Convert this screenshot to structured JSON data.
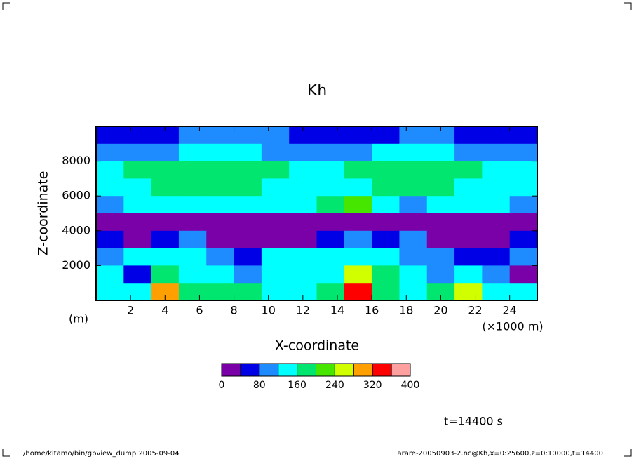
{
  "chart_data": {
    "type": "heatmap",
    "title": "Kh",
    "xlabel": "X-coordinate",
    "ylabel": "Z-coordinate",
    "xunit": "(×1000 m)",
    "yunit": "(m)",
    "annotation": "t=14400 s",
    "footer_left": "/home/kitamo/bin/gpview_dump  2005-09-04",
    "footer_right": "arare-20050903-2.nc@Kh,x=0:25600,z=0:10000,t=14400",
    "xlim": [
      0,
      25.6
    ],
    "ylim": [
      0,
      10000
    ],
    "xticks": [
      2,
      4,
      6,
      8,
      10,
      12,
      14,
      16,
      18,
      20,
      22,
      24
    ],
    "yticks": [
      2000,
      4000,
      6000,
      8000
    ],
    "x": [
      0.8,
      2.4,
      4.0,
      5.6,
      7.2,
      8.8,
      10.4,
      12.0,
      13.6,
      15.2,
      16.8,
      18.4,
      20.0,
      21.6,
      23.2,
      24.8
    ],
    "y": [
      9500,
      8500,
      7500,
      6500,
      5500,
      4500,
      3500,
      2500,
      1500,
      500
    ],
    "values": [
      [
        60,
        60,
        70,
        90,
        90,
        80,
        80,
        70,
        70,
        70,
        70,
        80,
        80,
        70,
        60,
        60
      ],
      [
        110,
        100,
        110,
        130,
        130,
        120,
        110,
        110,
        100,
        110,
        120,
        130,
        120,
        110,
        100,
        110
      ],
      [
        150,
        160,
        170,
        180,
        190,
        180,
        170,
        150,
        150,
        160,
        170,
        180,
        170,
        160,
        150,
        150
      ],
      [
        130,
        140,
        170,
        180,
        170,
        160,
        150,
        140,
        140,
        150,
        160,
        170,
        160,
        150,
        140,
        130
      ],
      [
        110,
        120,
        130,
        150,
        140,
        130,
        140,
        150,
        170,
        200,
        130,
        110,
        120,
        140,
        130,
        110
      ],
      [
        20,
        20,
        20,
        20,
        20,
        20,
        20,
        20,
        20,
        20,
        20,
        20,
        20,
        20,
        20,
        20
      ],
      [
        70,
        30,
        60,
        110,
        20,
        20,
        20,
        20,
        60,
        90,
        60,
        100,
        20,
        20,
        20,
        50
      ],
      [
        110,
        120,
        130,
        150,
        110,
        60,
        120,
        130,
        120,
        140,
        130,
        110,
        100,
        60,
        60,
        100
      ],
      [
        120,
        60,
        180,
        150,
        140,
        110,
        140,
        130,
        150,
        260,
        160,
        120,
        90,
        140,
        110,
        30
      ],
      [
        130,
        150,
        300,
        170,
        170,
        160,
        150,
        140,
        180,
        350,
        190,
        150,
        170,
        260,
        140,
        120
      ]
    ],
    "levels": [
      0,
      40,
      80,
      120,
      160,
      200,
      240,
      280,
      320,
      360,
      400
    ],
    "colors": [
      "#7a00a8",
      "#0000e6",
      "#1e8cff",
      "#00ffff",
      "#00e66e",
      "#46e600",
      "#d2ff00",
      "#ffa000",
      "#ff0000",
      "#ffa0a0"
    ],
    "colorbar_ticks": [
      0,
      80,
      160,
      240,
      320,
      400
    ]
  }
}
